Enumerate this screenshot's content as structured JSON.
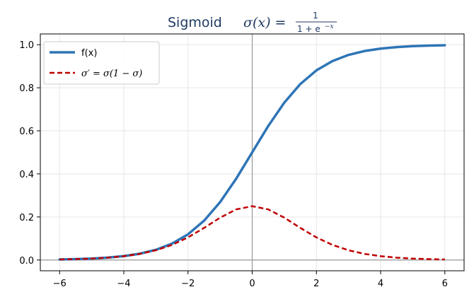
{
  "chart_data": {
    "type": "line",
    "title": {
      "prefix": "Sigmoid",
      "formula_lhs": "σ(x) =",
      "formula_numerator": "1",
      "formula_denominator": "1 + e",
      "formula_exponent": "−x"
    },
    "xlim": [
      -6.6,
      6.6
    ],
    "ylim": [
      -0.05,
      1.05
    ],
    "xticks": [
      {
        "value": -6,
        "label": "−6"
      },
      {
        "value": -4,
        "label": "−4"
      },
      {
        "value": -2,
        "label": "−2"
      },
      {
        "value": 0,
        "label": "0"
      },
      {
        "value": 2,
        "label": "2"
      },
      {
        "value": 4,
        "label": "4"
      },
      {
        "value": 6,
        "label": "6"
      }
    ],
    "yticks": [
      {
        "value": 0.0,
        "label": "0.0"
      },
      {
        "value": 0.2,
        "label": "0.2"
      },
      {
        "value": 0.4,
        "label": "0.4"
      },
      {
        "value": 0.6,
        "label": "0.6"
      },
      {
        "value": 0.8,
        "label": "0.8"
      },
      {
        "value": 1.0,
        "label": "1.0"
      }
    ],
    "grid": true,
    "legend_position": "upper-left",
    "series": [
      {
        "name": "f(x)",
        "color": "#2e75b6",
        "style": "solid",
        "x": [
          -6,
          -5.5,
          -5,
          -4.5,
          -4,
          -3.5,
          -3,
          -2.5,
          -2,
          -1.5,
          -1,
          -0.5,
          0,
          0.5,
          1,
          1.5,
          2,
          2.5,
          3,
          3.5,
          4,
          4.5,
          5,
          5.5,
          6
        ],
        "y": [
          0.0025,
          0.0041,
          0.0067,
          0.011,
          0.018,
          0.0293,
          0.0474,
          0.0759,
          0.1192,
          0.1824,
          0.2689,
          0.3775,
          0.5,
          0.6225,
          0.7311,
          0.8176,
          0.8808,
          0.9241,
          0.9526,
          0.9707,
          0.982,
          0.989,
          0.9933,
          0.9959,
          0.9975
        ]
      },
      {
        "name_parts": {
          "lhs": "σ′ = σ(1 − σ)"
        },
        "color": "#c00000",
        "style": "dashed",
        "x": [
          -6,
          -5.5,
          -5,
          -4.5,
          -4,
          -3.5,
          -3,
          -2.5,
          -2,
          -1.5,
          -1,
          -0.5,
          0,
          0.5,
          1,
          1.5,
          2,
          2.5,
          3,
          3.5,
          4,
          4.5,
          5,
          5.5,
          6
        ],
        "y": [
          0.0025,
          0.0041,
          0.0066,
          0.0109,
          0.0177,
          0.0285,
          0.0452,
          0.0701,
          0.105,
          0.1491,
          0.1966,
          0.235,
          0.25,
          0.235,
          0.1966,
          0.1491,
          0.105,
          0.0701,
          0.0452,
          0.0285,
          0.0177,
          0.0109,
          0.0066,
          0.0041,
          0.0025
        ]
      }
    ],
    "reference_lines": [
      {
        "axis": "y",
        "value": 0,
        "color": "#999999"
      },
      {
        "axis": "x",
        "value": 0,
        "color": "#999999"
      }
    ]
  }
}
